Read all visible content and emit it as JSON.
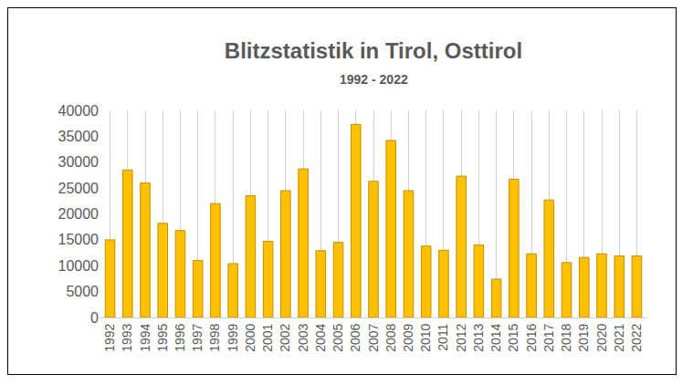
{
  "chart_data": {
    "type": "bar",
    "title": "Blitzstatistik in Tirol, Osttirol",
    "subtitle": "1992 - 2022",
    "categories": [
      "1992",
      "1993",
      "1994",
      "1995",
      "1996",
      "1997",
      "1998",
      "1999",
      "2000",
      "2001",
      "2002",
      "2003",
      "2004",
      "2005",
      "2006",
      "2007",
      "2008",
      "2009",
      "2010",
      "2011",
      "2012",
      "2013",
      "2014",
      "2015",
      "2016",
      "2017",
      "2018",
      "2019",
      "2020",
      "2021",
      "2022"
    ],
    "values": [
      15000,
      28500,
      26000,
      18200,
      16800,
      11000,
      22000,
      10400,
      23500,
      14700,
      24500,
      28700,
      12900,
      14500,
      37300,
      26300,
      34200,
      24500,
      13800,
      13000,
      27300,
      14000,
      7400,
      26700,
      12300,
      22700,
      10600,
      11600,
      12300,
      11900,
      11900
    ],
    "color": "#FFC000",
    "ylim": [
      0,
      40000
    ],
    "yticks": [
      0,
      5000,
      10000,
      15000,
      20000,
      25000,
      30000,
      35000,
      40000
    ],
    "grid": true
  }
}
